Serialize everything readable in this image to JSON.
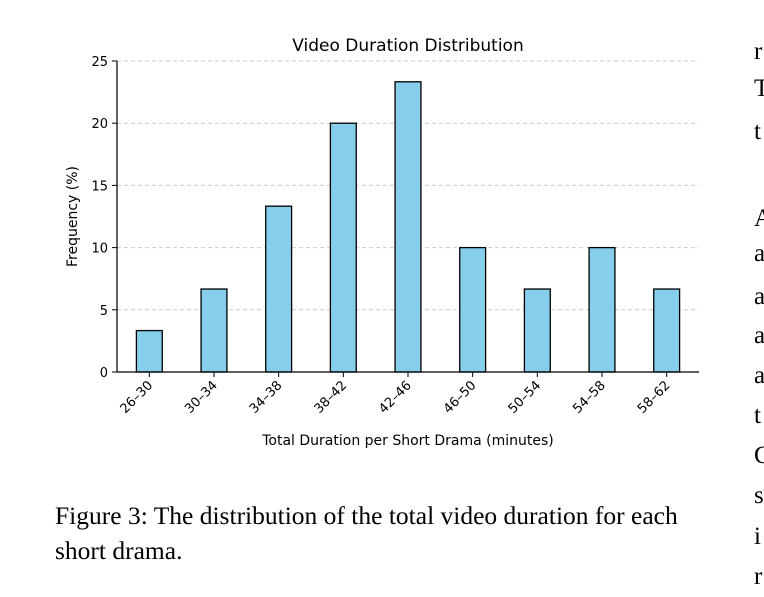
{
  "chart_data": {
    "type": "bar",
    "title": "Video Duration Distribution",
    "xlabel": "Total Duration per Short Drama (minutes)",
    "ylabel": "Frequency (%)",
    "categories": [
      "26–30",
      "30–34",
      "34–38",
      "38–42",
      "42–46",
      "46–50",
      "50–54",
      "54–58",
      "58–62"
    ],
    "values": [
      3.33,
      6.67,
      13.33,
      20.0,
      23.33,
      10.0,
      6.67,
      10.0,
      6.67
    ],
    "ylim": [
      0,
      25
    ],
    "yticks": [
      0,
      5,
      10,
      15,
      20,
      25
    ],
    "grid": "horizontal dashed",
    "bar_color": "#87CEEB",
    "edge_color": "#000000",
    "grid_color": "#cccccc"
  },
  "caption": "Figure 3: The distribution of the total video duration for each short drama.",
  "side_text": [
    "r",
    "T",
    "t",
    "",
    "A",
    "a",
    "a",
    "a",
    "a",
    "t",
    "C",
    "s",
    "i",
    "r"
  ]
}
